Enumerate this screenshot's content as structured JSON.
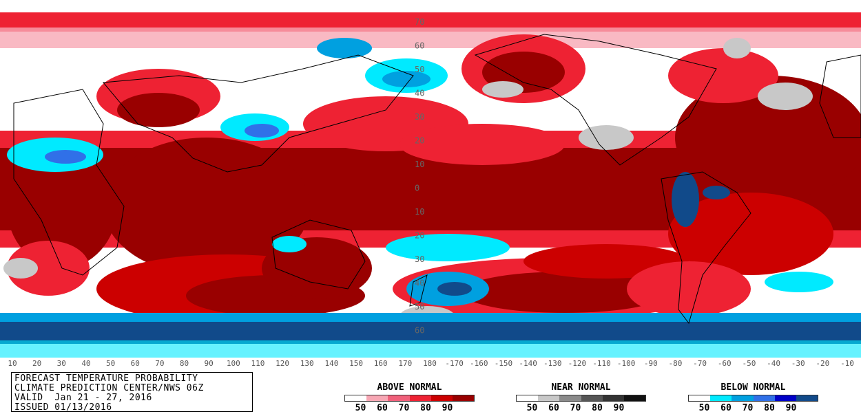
{
  "map": {
    "latitude_labels": [
      "70",
      "60",
      "50",
      "40",
      "30",
      "20",
      "10",
      "0",
      "10",
      "20",
      "30",
      "40",
      "50",
      "60"
    ],
    "longitude_labels": [
      "10",
      "20",
      "30",
      "40",
      "50",
      "60",
      "70",
      "80",
      "90",
      "100",
      "110",
      "120",
      "130",
      "140",
      "150",
      "160",
      "170",
      "180",
      "-170",
      "-160",
      "-150",
      "-140",
      "-130",
      "-120",
      "-110",
      "-100",
      "-90",
      "-80",
      "-70",
      "-60",
      "-50",
      "-40",
      "-30",
      "-20",
      "-10"
    ],
    "colors": {
      "above": [
        "#ffffff",
        "#f7a7b4",
        "#f0607a",
        "#ee2233",
        "#cc0000",
        "#990000"
      ],
      "near": [
        "#ffffff",
        "#c8c8c8",
        "#8a8a8a",
        "#555555",
        "#333333",
        "#111111"
      ],
      "below": [
        "#ffffff",
        "#00eaff",
        "#00a0e0",
        "#3070e8",
        "#0000c8",
        "#114a8a"
      ]
    }
  },
  "title_block": {
    "line1": "FORECAST TEMPERATURE PROBABILITY",
    "line2": "CLIMATE PREDICTION CENTER/NWS 06Z",
    "line3": "VALID  Jan 21 - 27, 2016",
    "line4": "ISSUED 01/13/2016"
  },
  "legends": [
    {
      "title": "ABOVE NORMAL",
      "ticks": [
        "50",
        "60",
        "70",
        "80",
        "90"
      ]
    },
    {
      "title": "NEAR NORMAL",
      "ticks": [
        "50",
        "60",
        "70",
        "80",
        "90"
      ]
    },
    {
      "title": "BELOW NORMAL",
      "ticks": [
        "50",
        "60",
        "70",
        "80",
        "90"
      ]
    }
  ]
}
